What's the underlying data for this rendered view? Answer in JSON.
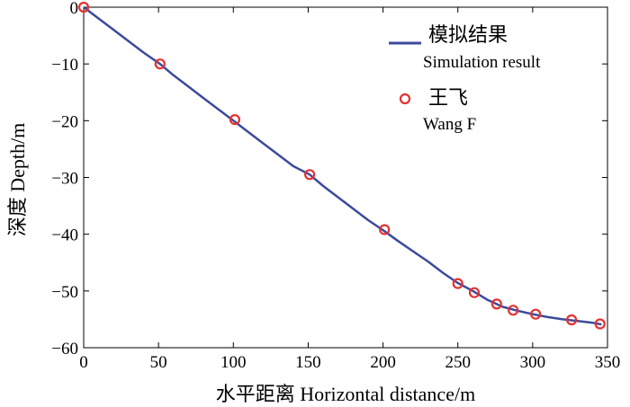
{
  "chart_data": {
    "type": "line",
    "title": "",
    "xlabel": "水平距离 Horizontal distance/m",
    "ylabel": "深度 Depth/m",
    "xlim": [
      0,
      350
    ],
    "ylim": [
      -60,
      0
    ],
    "xticks": [
      0,
      50,
      100,
      150,
      200,
      250,
      300,
      350
    ],
    "yticks": [
      0,
      -10,
      -20,
      -30,
      -40,
      -50,
      -60
    ],
    "grid": false,
    "legend_position": "top-right",
    "series": [
      {
        "name": "模拟结果",
        "name_en": "Simulation result",
        "kind": "line",
        "color": "#3c4a9c",
        "x": [
          0,
          10,
          20,
          30,
          40,
          51,
          60,
          70,
          80,
          90,
          100,
          110,
          120,
          130,
          140,
          151,
          160,
          170,
          180,
          190,
          200,
          210,
          220,
          230,
          240,
          250,
          260,
          270,
          280,
          290,
          300,
          310,
          320,
          330,
          340,
          346
        ],
        "y": [
          0,
          -2,
          -4,
          -6,
          -8,
          -10,
          -12,
          -14,
          -16,
          -18,
          -20,
          -22,
          -24,
          -26,
          -28,
          -29.5,
          -31.5,
          -33.5,
          -35.5,
          -37.5,
          -39.3,
          -41.2,
          -43,
          -44.8,
          -46.8,
          -48.6,
          -50,
          -51.6,
          -52.8,
          -53.5,
          -54.1,
          -54.6,
          -55,
          -55.3,
          -55.6,
          -55.9
        ]
      },
      {
        "name": "王飞",
        "name_en": "Wang F",
        "kind": "scatter",
        "color": "#e53030",
        "x": [
          0,
          51,
          101,
          151,
          201,
          250,
          261,
          276,
          287,
          302,
          326,
          345
        ],
        "y": [
          0,
          -10,
          -19.8,
          -29.5,
          -39.2,
          -48.7,
          -50.3,
          -52.3,
          -53.4,
          -54.1,
          -55.1,
          -55.8
        ]
      }
    ]
  }
}
